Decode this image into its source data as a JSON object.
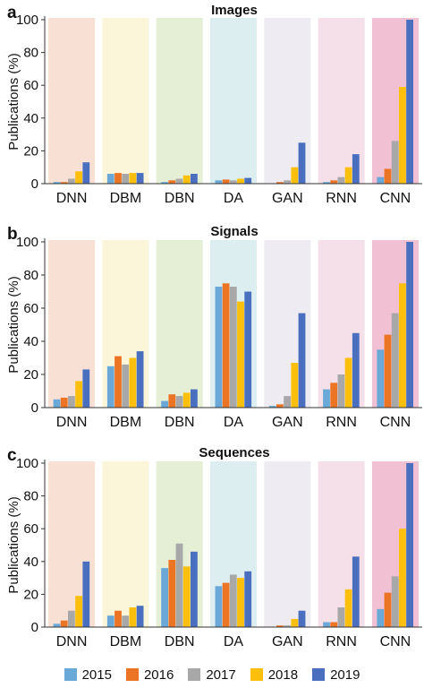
{
  "legend": [
    {
      "name": "2015",
      "color": "#6aa8d8"
    },
    {
      "name": "2016",
      "color": "#ec7425"
    },
    {
      "name": "2017",
      "color": "#a8a8a8"
    },
    {
      "name": "2018",
      "color": "#fbbf0c"
    },
    {
      "name": "2019",
      "color": "#4a6fbf"
    }
  ],
  "band_colors": [
    "#f9e0d5",
    "#fbf6da",
    "#e5efd6",
    "#ddeef0",
    "#efebf2",
    "#f5e0ea",
    "#f1c0d2"
  ],
  "chart_data": [
    {
      "type": "bar",
      "panel_label": "a",
      "title": "Images",
      "ylabel": "Publications (%)",
      "xlabel": "",
      "ylim": [
        0,
        100
      ],
      "yticks": [
        0,
        20,
        40,
        60,
        80,
        100
      ],
      "categories": [
        "DNN",
        "DBM",
        "DBN",
        "DA",
        "GAN",
        "RNN",
        "CNN"
      ],
      "series": [
        {
          "name": "2015",
          "values": [
            1,
            6,
            1,
            2,
            0,
            1,
            4
          ]
        },
        {
          "name": "2016",
          "values": [
            1,
            6.5,
            2,
            2.5,
            1,
            2,
            9
          ]
        },
        {
          "name": "2017",
          "values": [
            3,
            6,
            3,
            2,
            2,
            4,
            26
          ]
        },
        {
          "name": "2018",
          "values": [
            7.5,
            6.5,
            5,
            3,
            10,
            10,
            59
          ]
        },
        {
          "name": "2019",
          "values": [
            13,
            6.5,
            6,
            3.5,
            25,
            18,
            100
          ]
        }
      ]
    },
    {
      "type": "bar",
      "panel_label": "b",
      "title": "Signals",
      "ylabel": "Publications (%)",
      "xlabel": "",
      "ylim": [
        0,
        100
      ],
      "yticks": [
        0,
        20,
        40,
        60,
        80,
        100
      ],
      "categories": [
        "DNN",
        "DBM",
        "DBN",
        "DA",
        "GAN",
        "RNN",
        "CNN"
      ],
      "series": [
        {
          "name": "2015",
          "values": [
            5,
            25,
            4,
            73,
            1,
            11,
            35
          ]
        },
        {
          "name": "2016",
          "values": [
            6,
            31,
            8,
            75,
            2,
            15,
            44
          ]
        },
        {
          "name": "2017",
          "values": [
            7,
            26,
            7,
            73,
            7,
            20,
            57
          ]
        },
        {
          "name": "2018",
          "values": [
            16,
            30,
            9,
            64,
            27,
            30,
            75
          ]
        },
        {
          "name": "2019",
          "values": [
            23,
            34,
            11,
            70,
            57,
            45,
            100
          ]
        }
      ]
    },
    {
      "type": "bar",
      "panel_label": "c",
      "title": "Sequences",
      "ylabel": "Publications (%)",
      "xlabel": "",
      "ylim": [
        0,
        100
      ],
      "yticks": [
        0,
        20,
        40,
        60,
        80,
        100
      ],
      "categories": [
        "DNN",
        "DBM",
        "DBN",
        "DA",
        "GAN",
        "RNN",
        "CNN"
      ],
      "series": [
        {
          "name": "2015",
          "values": [
            2,
            7,
            36,
            25,
            0,
            3,
            11
          ]
        },
        {
          "name": "2016",
          "values": [
            4,
            10,
            41,
            27,
            1,
            3,
            21
          ]
        },
        {
          "name": "2017",
          "values": [
            10,
            7,
            51,
            32,
            1,
            12,
            31
          ]
        },
        {
          "name": "2018",
          "values": [
            19,
            12,
            37,
            30,
            5,
            23,
            60
          ]
        },
        {
          "name": "2019",
          "values": [
            40,
            13,
            46,
            34,
            10,
            43,
            100
          ]
        }
      ]
    }
  ]
}
